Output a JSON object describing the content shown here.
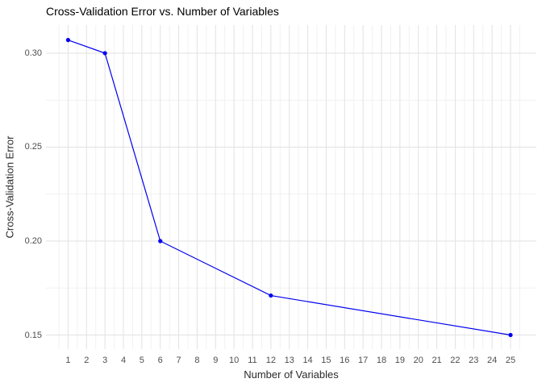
{
  "title": "Cross-Validation Error vs. Number of Variables",
  "colors": {
    "background": "#FFFFFF",
    "line": "#0000EE",
    "point": "#0000EE",
    "grid_major": "#E2E2E2",
    "grid_minor": "#F1F1F1",
    "tick_text": "#4D4D4D",
    "axis_title_text": "#2B2B2B",
    "title_text": "#000000"
  },
  "chart_data": {
    "type": "line",
    "title": "Cross-Validation Error vs. Number of Variables",
    "xlabel": "Number of Variables",
    "ylabel": "Cross-Validation Error",
    "x": [
      1,
      3,
      6,
      12,
      25
    ],
    "y": [
      0.307,
      0.3,
      0.2,
      0.171,
      0.15
    ],
    "xlim": [
      -0.2,
      26.4
    ],
    "ylim": [
      0.1425,
      0.315
    ],
    "x_ticks": [
      1,
      2,
      3,
      4,
      5,
      6,
      7,
      8,
      9,
      10,
      11,
      12,
      13,
      14,
      15,
      16,
      17,
      18,
      19,
      20,
      21,
      22,
      23,
      24,
      25
    ],
    "x_minor": [
      0.5,
      1.5,
      2.5,
      3.5,
      4.5,
      5.5,
      6.5,
      7.5,
      8.5,
      9.5,
      10.5,
      11.5,
      12.5,
      13.5,
      14.5,
      15.5,
      16.5,
      17.5,
      18.5,
      19.5,
      20.5,
      21.5,
      22.5,
      23.5,
      24.5,
      25.5
    ],
    "y_tick_values": [
      0.15,
      0.2,
      0.25,
      0.3
    ],
    "y_tick_labels": [
      "0.15",
      "0.20",
      "0.25",
      "0.30"
    ],
    "y_minor": [
      0.175,
      0.225,
      0.275
    ],
    "grid": true,
    "legend": "none",
    "marker": "circle",
    "marker_radius": 2.6,
    "line_width": 1.2
  }
}
